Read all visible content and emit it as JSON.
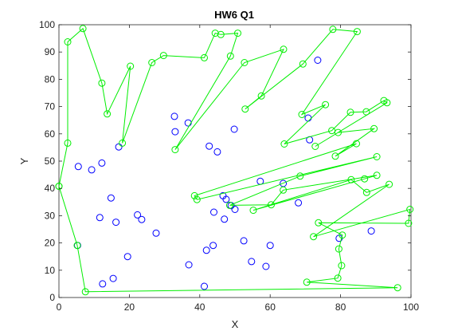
{
  "chart_data": {
    "type": "scatter",
    "title": "HW6 Q1",
    "xlabel": "X",
    "ylabel": "Y",
    "xlim": [
      0,
      100
    ],
    "ylim": [
      0,
      100
    ],
    "xticks": [
      0,
      20,
      40,
      60,
      80,
      100
    ],
    "yticks": [
      0,
      10,
      20,
      30,
      40,
      50,
      60,
      70,
      80,
      90,
      100
    ],
    "grid": false,
    "series": [
      {
        "marker": "circle",
        "color": "#0000ff",
        "line": false,
        "points": [
          [
            17.0,
            55.2
          ],
          [
            5.5,
            48.0
          ],
          [
            9.3,
            46.8
          ],
          [
            12.2,
            49.3
          ],
          [
            14.8,
            36.5
          ],
          [
            11.6,
            29.3
          ],
          [
            16.2,
            27.6
          ],
          [
            22.3,
            30.3
          ],
          [
            23.5,
            28.6
          ],
          [
            27.6,
            23.6
          ],
          [
            19.5,
            15.0
          ],
          [
            5.3,
            19.1
          ],
          [
            15.4,
            7.0
          ],
          [
            12.4,
            5.0
          ],
          [
            32.8,
            66.4
          ],
          [
            33.0,
            60.8
          ],
          [
            36.7,
            64.0
          ],
          [
            42.7,
            55.5
          ],
          [
            45.0,
            53.4
          ],
          [
            49.8,
            61.7
          ],
          [
            46.6,
            37.3
          ],
          [
            47.5,
            36.0
          ],
          [
            48.9,
            33.7
          ],
          [
            50.0,
            32.3
          ],
          [
            44.0,
            31.3
          ],
          [
            47.0,
            28.7
          ],
          [
            36.9,
            12.0
          ],
          [
            43.8,
            19.1
          ],
          [
            41.9,
            17.3
          ],
          [
            41.3,
            4.1
          ],
          [
            52.5,
            20.8
          ],
          [
            54.7,
            13.2
          ],
          [
            58.8,
            11.4
          ],
          [
            60.0,
            19.1
          ],
          [
            57.2,
            42.6
          ],
          [
            63.7,
            41.8
          ],
          [
            68.0,
            34.7
          ],
          [
            70.8,
            65.8
          ],
          [
            71.2,
            57.8
          ],
          [
            73.5,
            87.0
          ],
          [
            79.6,
            21.7
          ],
          [
            88.7,
            24.4
          ]
        ]
      },
      {
        "marker": "circle",
        "color": "#00ee00",
        "line": true,
        "points": [
          [
            0.0,
            40.8
          ],
          [
            2.5,
            56.6
          ],
          [
            2.5,
            93.7
          ],
          [
            6.8,
            98.6
          ],
          [
            12.2,
            78.6
          ],
          [
            13.7,
            67.3
          ],
          [
            20.3,
            84.8
          ],
          [
            18.0,
            56.6
          ],
          [
            26.4,
            86.1
          ],
          [
            29.7,
            88.7
          ],
          [
            41.3,
            87.9
          ],
          [
            44.4,
            96.9
          ],
          [
            46.0,
            96.4
          ],
          [
            50.8,
            96.9
          ],
          [
            48.7,
            88.5
          ],
          [
            33.0,
            54.2
          ],
          [
            52.7,
            86.1
          ],
          [
            63.8,
            91.0
          ],
          [
            57.5,
            73.9
          ],
          [
            52.9,
            69.1
          ],
          [
            69.3,
            85.6
          ],
          [
            77.8,
            98.3
          ],
          [
            84.7,
            97.5
          ],
          [
            69.0,
            67.1
          ],
          [
            75.7,
            70.7
          ],
          [
            64.0,
            56.3
          ],
          [
            77.5,
            61.2
          ],
          [
            82.8,
            67.9
          ],
          [
            87.3,
            68.1
          ],
          [
            92.3,
            72.2
          ],
          [
            93.2,
            71.4
          ],
          [
            72.8,
            55.4
          ],
          [
            79.3,
            60.5
          ],
          [
            89.5,
            61.9
          ],
          [
            78.5,
            51.8
          ],
          [
            84.5,
            56.4
          ],
          [
            38.5,
            37.3
          ],
          [
            39.2,
            35.9
          ],
          [
            90.3,
            51.6
          ],
          [
            68.5,
            44.5
          ],
          [
            48.5,
            33.8
          ],
          [
            60.3,
            34.0
          ],
          [
            63.7,
            39.4
          ],
          [
            90.3,
            44.8
          ],
          [
            86.8,
            43.5
          ],
          [
            55.2,
            32.0
          ],
          [
            83.0,
            43.2
          ],
          [
            87.4,
            38.5
          ],
          [
            93.8,
            41.5
          ],
          [
            72.3,
            22.3
          ],
          [
            99.7,
            32.3
          ],
          [
            99.3,
            27.2
          ],
          [
            73.7,
            27.4
          ],
          [
            80.5,
            22.9
          ],
          [
            79.5,
            17.8
          ],
          [
            80.3,
            11.7
          ],
          [
            79.2,
            7.1
          ],
          [
            70.4,
            5.6
          ],
          [
            96.2,
            3.6
          ],
          [
            7.5,
            2.1
          ],
          [
            5.2,
            19.1
          ],
          [
            0.0,
            40.8
          ]
        ]
      }
    ]
  }
}
